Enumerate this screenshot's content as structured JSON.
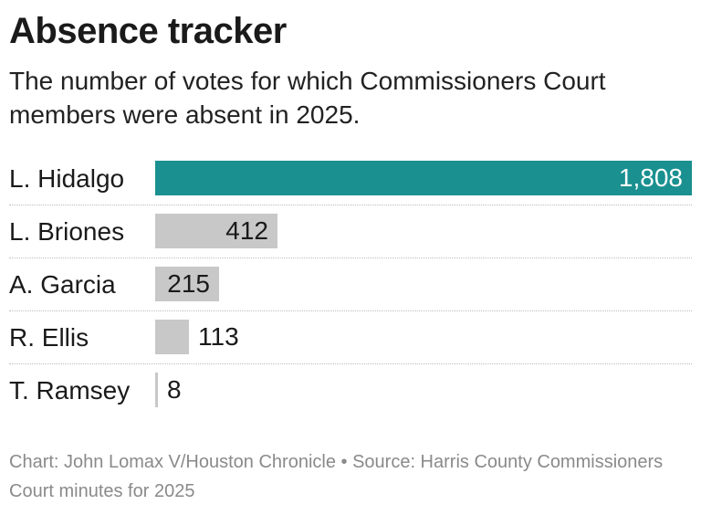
{
  "header": {
    "title": "Absence tracker",
    "subtitle": "The number of votes for which Commissioners Court members were absent in 2025."
  },
  "footer": {
    "credit": "Chart: John Lomax V/Houston Chronicle • Source: Harris County Commissioners Court minutes for 2025"
  },
  "colors": {
    "highlight": "#1a9090",
    "default": "#c8c8c8"
  },
  "chart_data": {
    "type": "bar",
    "orientation": "horizontal",
    "title": "Absence tracker",
    "subtitle": "The number of votes for which Commissioners Court members were absent in 2025.",
    "categories": [
      "L. Hidalgo",
      "L. Briones",
      "A. Garcia",
      "R. Ellis",
      "T. Ramsey"
    ],
    "values": [
      1808,
      412,
      215,
      113,
      8
    ],
    "value_labels": [
      "1,808",
      "412",
      "215",
      "113",
      "8"
    ],
    "highlight_index": 0,
    "xlim": [
      0,
      1808
    ],
    "grid": false,
    "legend": "none"
  }
}
